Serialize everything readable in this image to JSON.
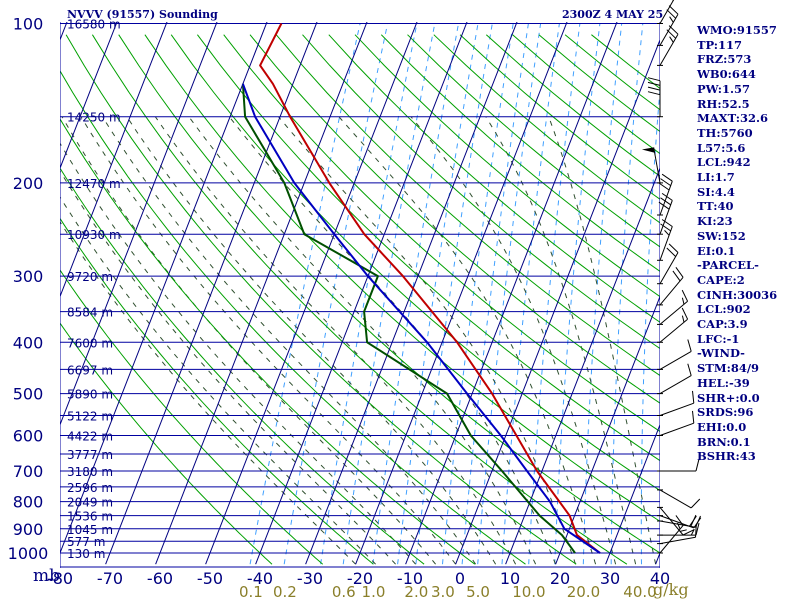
{
  "chart_data": {
    "type": "line",
    "title_left": "NVVV (91557) Sounding",
    "title_right": "2300Z  4 MAY 25",
    "pressure_axis": {
      "label": "mb",
      "ticks": [
        100,
        200,
        300,
        400,
        500,
        600,
        700,
        800,
        900,
        1000
      ],
      "range": [
        100,
        1050
      ],
      "log_scale": true
    },
    "temperature_axis": {
      "ticks": [
        -80,
        -70,
        -60,
        -50,
        -40,
        -30,
        -20,
        -10,
        0,
        10,
        20,
        30,
        40
      ],
      "tick_labels": [
        "-80",
        "-70",
        "-60",
        "-50",
        "-40",
        "-30",
        "-20",
        "-10",
        "0",
        "10",
        "20",
        "30",
        "40"
      ],
      "range": [
        -80,
        40
      ],
      "skew": true
    },
    "mixing_ratio_labels": {
      "unit": "g/kg",
      "values": [
        "0.1",
        "0.2",
        "0.6",
        "1.0",
        "2.0",
        "3.0",
        "5.0",
        "10.0",
        "20.0",
        "40.0"
      ]
    },
    "height_labels": [
      {
        "p": 100,
        "text": "16580 m"
      },
      {
        "p": 150,
        "text": "14250 m"
      },
      {
        "p": 200,
        "text": "12470 m"
      },
      {
        "p": 250,
        "text": "10930 m"
      },
      {
        "p": 300,
        "text": "9720 m"
      },
      {
        "p": 350,
        "text": "8584 m"
      },
      {
        "p": 400,
        "text": "7600 m"
      },
      {
        "p": 450,
        "text": "6697 m"
      },
      {
        "p": 500,
        "text": "5890 m"
      },
      {
        "p": 550,
        "text": "5122 m"
      },
      {
        "p": 600,
        "text": "4422 m"
      },
      {
        "p": 650,
        "text": "3777 m"
      },
      {
        "p": 700,
        "text": "3180 m"
      },
      {
        "p": 750,
        "text": "2596 m"
      },
      {
        "p": 800,
        "text": "2049 m"
      },
      {
        "p": 850,
        "text": "1536 m"
      },
      {
        "p": 900,
        "text": "1045 m"
      },
      {
        "p": 950,
        "text": "577 m"
      },
      {
        "p": 1000,
        "text": "130 m"
      }
    ],
    "series": [
      {
        "name": "temperature",
        "color": "#c00000",
        "points": [
          {
            "p": 1000,
            "t": 28.0
          },
          {
            "p": 925,
            "t": 22.0
          },
          {
            "p": 850,
            "t": 19.0
          },
          {
            "p": 700,
            "t": 9.0
          },
          {
            "p": 500,
            "t": -6.0
          },
          {
            "p": 400,
            "t": -17.0
          },
          {
            "p": 300,
            "t": -33.0
          },
          {
            "p": 250,
            "t": -44.0
          },
          {
            "p": 200,
            "t": -55.0
          },
          {
            "p": 150,
            "t": -68.0
          },
          {
            "p": 130,
            "t": -74.0
          },
          {
            "p": 120,
            "t": -78.0
          },
          {
            "p": 100,
            "t": -77.0
          }
        ]
      },
      {
        "name": "dewpoint",
        "color": "#005000",
        "points": [
          {
            "p": 1000,
            "t": 23.0
          },
          {
            "p": 990,
            "t": 22.5
          },
          {
            "p": 925,
            "t": 19.0
          },
          {
            "p": 850,
            "t": 13.0
          },
          {
            "p": 700,
            "t": 2.0
          },
          {
            "p": 600,
            "t": -7.0
          },
          {
            "p": 500,
            "t": -15.0
          },
          {
            "p": 400,
            "t": -35.0
          },
          {
            "p": 350,
            "t": -38.0
          },
          {
            "p": 300,
            "t": -38.0
          },
          {
            "p": 250,
            "t": -56.0
          },
          {
            "p": 200,
            "t": -64.0
          },
          {
            "p": 150,
            "t": -77.0
          },
          {
            "p": 130,
            "t": -80.0
          }
        ]
      },
      {
        "name": "parcel",
        "color": "#0000c0",
        "points": [
          {
            "p": 1000,
            "t": 28.0
          },
          {
            "p": 900,
            "t": 19.0
          },
          {
            "p": 800,
            "t": 14.0
          },
          {
            "p": 700,
            "t": 7.0
          },
          {
            "p": 600,
            "t": -1.0
          },
          {
            "p": 500,
            "t": -11.0
          },
          {
            "p": 400,
            "t": -23.0
          },
          {
            "p": 300,
            "t": -40.0
          },
          {
            "p": 250,
            "t": -50.0
          },
          {
            "p": 200,
            "t": -62.0
          },
          {
            "p": 150,
            "t": -75.0
          },
          {
            "p": 130,
            "t": -80.0
          }
        ]
      }
    ],
    "wind_barbs": [
      {
        "p": 1000,
        "dir": 40,
        "kt": 15
      },
      {
        "p": 960,
        "dir": 80,
        "kt": 10
      },
      {
        "p": 925,
        "dir": 90,
        "kt": 15
      },
      {
        "p": 870,
        "dir": 100,
        "kt": 20
      },
      {
        "p": 850,
        "dir": 110,
        "kt": 20
      },
      {
        "p": 820,
        "dir": 140,
        "kt": 15
      },
      {
        "p": 760,
        "dir": 120,
        "kt": 10
      },
      {
        "p": 700,
        "dir": 90,
        "kt": 10
      },
      {
        "p": 600,
        "dir": 70,
        "kt": 10
      },
      {
        "p": 550,
        "dir": 70,
        "kt": 10
      },
      {
        "p": 500,
        "dir": 60,
        "kt": 10
      },
      {
        "p": 450,
        "dir": 60,
        "kt": 10
      },
      {
        "p": 400,
        "dir": 50,
        "kt": 15
      },
      {
        "p": 370,
        "dir": 50,
        "kt": 15
      },
      {
        "p": 340,
        "dir": 40,
        "kt": 20
      },
      {
        "p": 310,
        "dir": 30,
        "kt": 20
      },
      {
        "p": 280,
        "dir": 20,
        "kt": 25
      },
      {
        "p": 250,
        "dir": 20,
        "kt": 30
      },
      {
        "p": 230,
        "dir": 20,
        "kt": 30
      },
      {
        "p": 200,
        "dir": 350,
        "kt": 50
      },
      {
        "p": 150,
        "dir": 0,
        "kt": 40
      },
      {
        "p": 120,
        "dir": 30,
        "kt": 25
      },
      {
        "p": 110,
        "dir": 30,
        "kt": 25
      },
      {
        "p": 100,
        "dir": 30,
        "kt": 25
      }
    ],
    "indices": [
      "WMO:91557",
      "TP:117",
      "FRZ:573",
      "WB0:644",
      "PW:1.57",
      "RH:52.5",
      "MAXT:32.6",
      "TH:5760",
      "L57:5.6",
      "LCL:942",
      "LI:1.7",
      "SI:4.4",
      "TT:40",
      "KI:23",
      "SW:152",
      "EI:0.1",
      "-PARCEL-",
      "CAPE:2",
      "CINH:30036",
      "LCL:902",
      "CAP:3.9",
      "LFC:-1",
      "-WIND-",
      "STM:84/9",
      "HEL:-39",
      "SHR+:0.0",
      "SRDS:96",
      "EHI:0.0",
      "BRN:0.1",
      "BSHR:43"
    ],
    "colors": {
      "isobar": "#0000a0",
      "isotherm": "#000080",
      "dry_adiabat": "#00a000",
      "moist_adiabat": "#305030",
      "mixing_ratio": "#40a0ff",
      "axis_text": "#000080",
      "mixing_ratio_text": "#8a7f2a"
    }
  }
}
